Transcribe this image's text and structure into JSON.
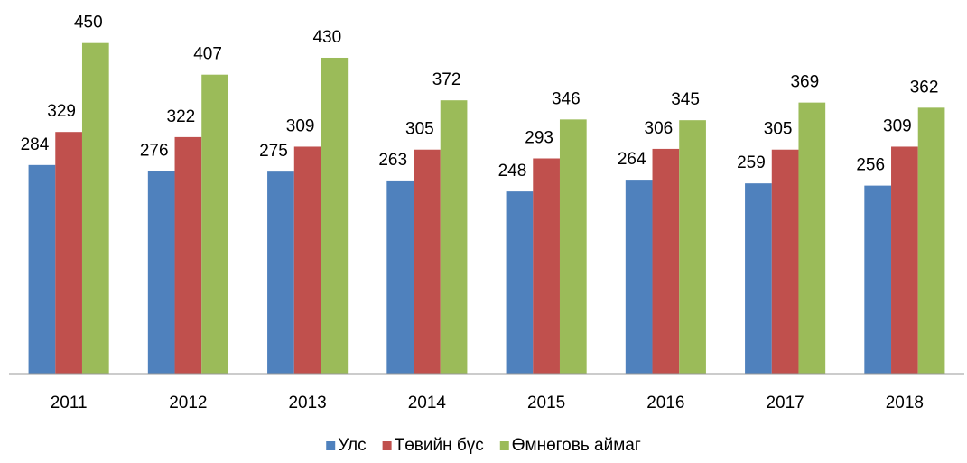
{
  "chart_data": {
    "type": "bar",
    "categories": [
      "2011",
      "2012",
      "2013",
      "2014",
      "2015",
      "2016",
      "2017",
      "2018"
    ],
    "series": [
      {
        "name": "Улс",
        "color": "#4f81bd",
        "values": [
          284,
          276,
          275,
          263,
          248,
          264,
          259,
          256
        ]
      },
      {
        "name": "Төвийн бүс",
        "color": "#c0504d",
        "values": [
          329,
          322,
          309,
          305,
          293,
          306,
          305,
          309
        ]
      },
      {
        "name": "Өмнөговь аймаг",
        "color": "#9bbb59",
        "values": [
          450,
          407,
          430,
          372,
          346,
          345,
          369,
          362
        ]
      }
    ],
    "ylim": [
      0,
      500
    ],
    "grid": false,
    "legend": "bottom"
  }
}
